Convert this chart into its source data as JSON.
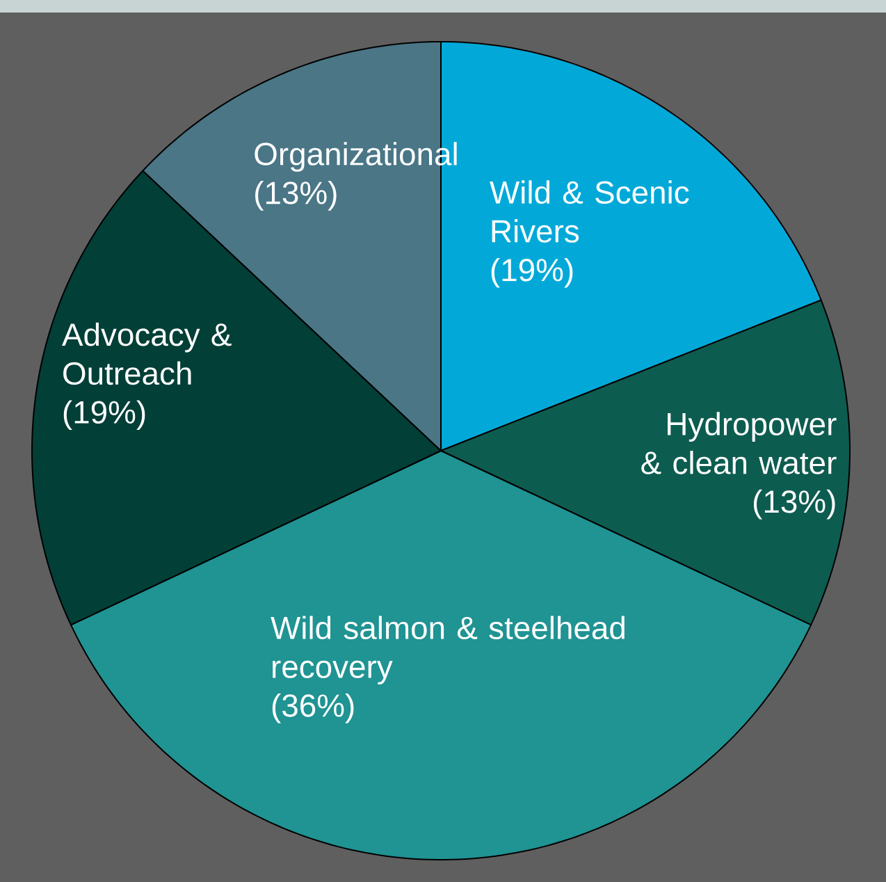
{
  "chart_data": {
    "type": "pie",
    "categories": [
      "Wild & Scenic Rivers",
      "Hydropower & clean water",
      "Wild salmon & steelhead recovery",
      "Advocacy & Outreach",
      "Organizational"
    ],
    "values": [
      19,
      13,
      36,
      19,
      13
    ],
    "value_labels": [
      "(19%)",
      "(13%)",
      "(36%)",
      "(19%)",
      "(13%)"
    ],
    "colors": [
      "#02a9d8",
      "#0d5c50",
      "#209393",
      "#023f37",
      "#4a7686"
    ]
  }
}
